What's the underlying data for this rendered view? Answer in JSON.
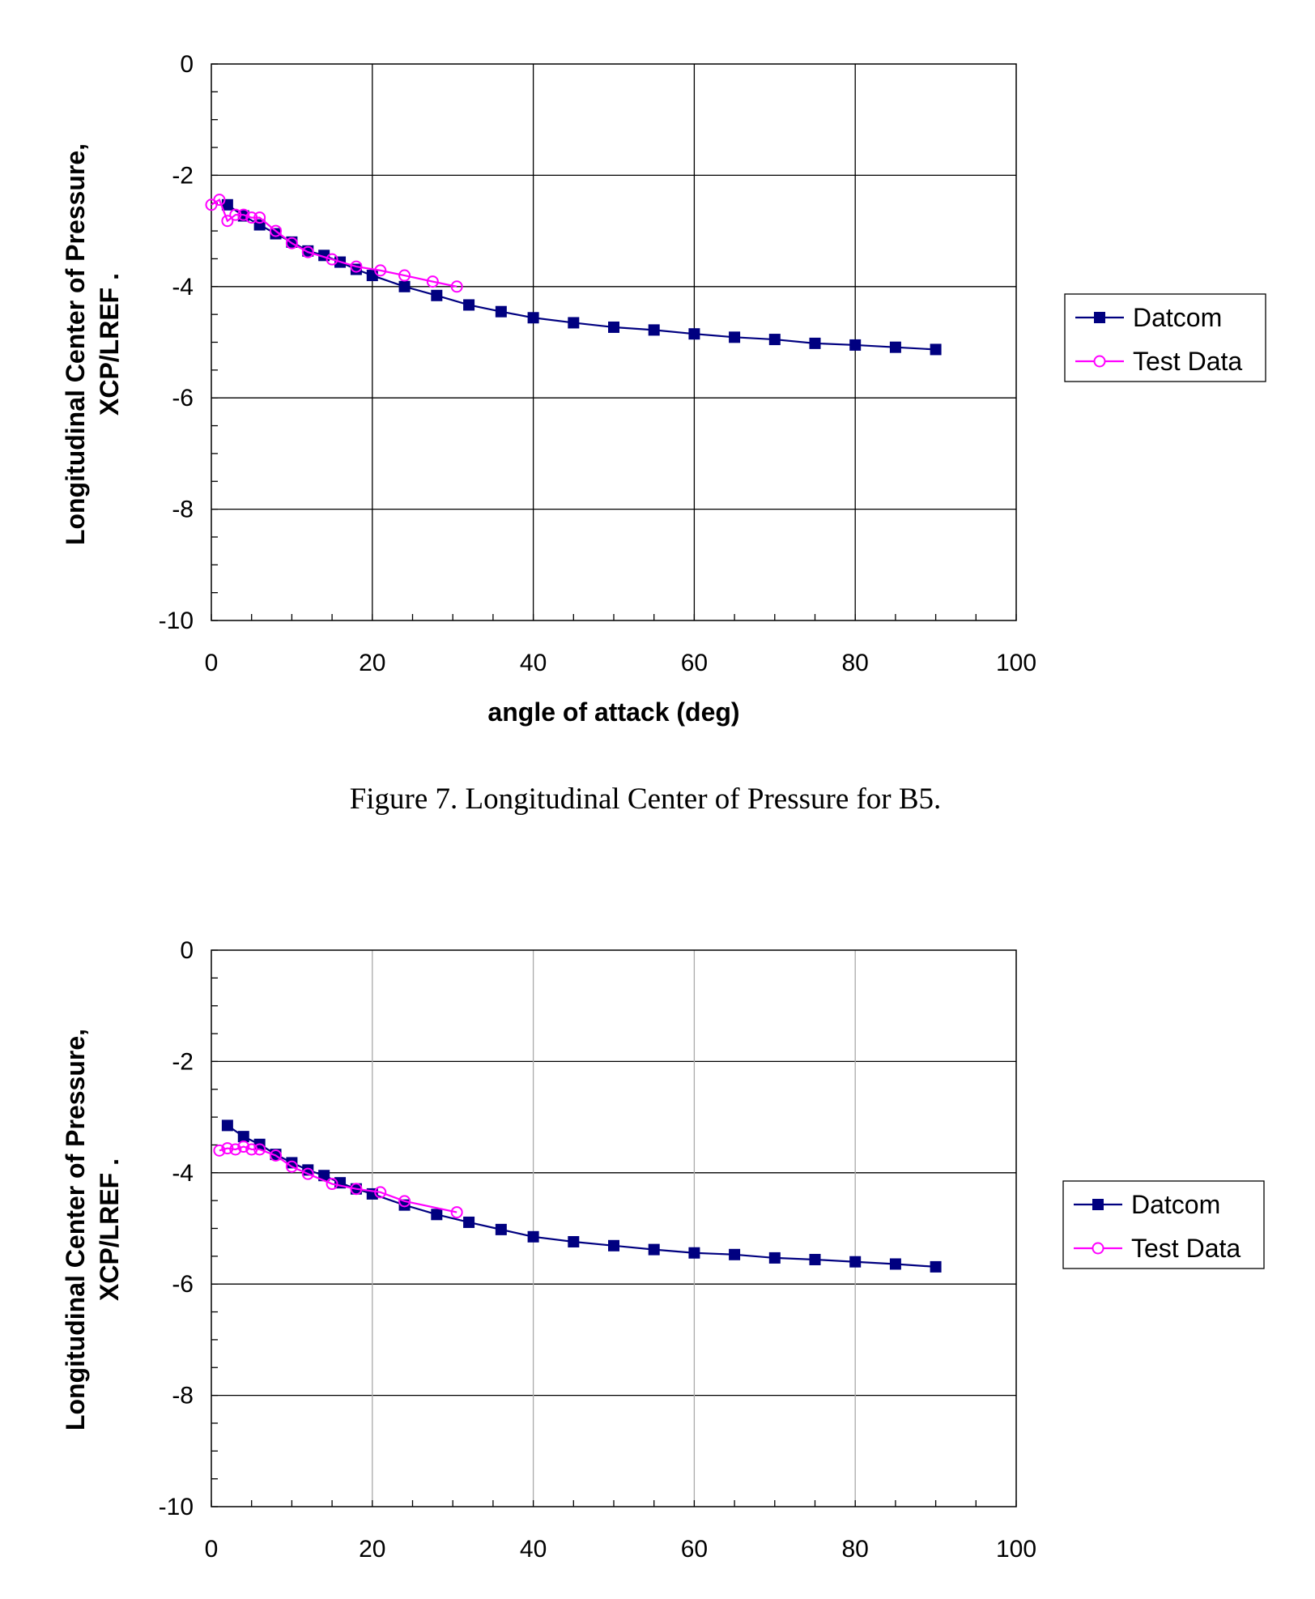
{
  "chart_data": [
    {
      "type": "line",
      "title": "",
      "xlabel": "angle of attack (deg)",
      "ylabel": [
        "Longitudinal Center of Pressure,",
        "XCP/LREF ."
      ],
      "xlim": [
        0,
        100
      ],
      "ylim": [
        -10,
        0
      ],
      "xticks": [
        "0",
        "20",
        "40",
        "60",
        "80",
        "100"
      ],
      "yticks": [
        "0",
        "-2",
        "-4",
        "-6",
        "-8",
        "-10"
      ],
      "grid": "major x and y",
      "legend_placement": "right",
      "caption": "Figure 7.  Longitudinal Center of Pressure for B5.",
      "series": [
        {
          "name": "Datcom",
          "color": "#000080",
          "marker": "filled-square",
          "x": [
            2,
            4,
            6,
            8,
            10,
            12,
            14,
            16,
            18,
            20,
            24,
            28,
            32,
            36,
            40,
            45,
            50,
            55,
            60,
            65,
            70,
            75,
            80,
            85,
            90
          ],
          "y": [
            -2.53,
            -2.73,
            -2.89,
            -3.05,
            -3.2,
            -3.36,
            -3.44,
            -3.56,
            -3.69,
            -3.8,
            -4.0,
            -4.16,
            -4.33,
            -4.45,
            -4.56,
            -4.65,
            -4.73,
            -4.78,
            -4.85,
            -4.91,
            -4.95,
            -5.02,
            -5.05,
            -5.09,
            -5.13
          ]
        },
        {
          "name": "Test Data",
          "color": "#ff00ff",
          "marker": "open-circle",
          "x": [
            0,
            1,
            2,
            3,
            4,
            5,
            6,
            8,
            10,
            12,
            15,
            18,
            21,
            24,
            27.5,
            30.5
          ],
          "y": [
            -2.53,
            -2.44,
            -2.82,
            -2.71,
            -2.71,
            -2.76,
            -2.76,
            -3.0,
            -3.22,
            -3.38,
            -3.51,
            -3.64,
            -3.71,
            -3.8,
            -3.91,
            -4.0
          ]
        }
      ]
    },
    {
      "type": "line",
      "title": "",
      "xlabel": "",
      "ylabel": [
        "Longitudinal Center of Pressure,",
        "XCP/LREF ."
      ],
      "xlim": [
        0,
        100
      ],
      "ylim": [
        -10,
        0
      ],
      "xticks": [
        "0",
        "20",
        "40",
        "60",
        "80",
        "100"
      ],
      "yticks": [
        "0",
        "-2",
        "-4",
        "-6",
        "-8",
        "-10"
      ],
      "grid": "major y (black), major x (gray)",
      "legend_placement": "right",
      "caption": "",
      "series": [
        {
          "name": "Datcom",
          "color": "#000080",
          "marker": "filled-square",
          "x": [
            2,
            4,
            6,
            8,
            10,
            12,
            14,
            16,
            18,
            20,
            24,
            28,
            32,
            36,
            40,
            45,
            50,
            55,
            60,
            65,
            70,
            75,
            80,
            85,
            90
          ],
          "y": [
            -3.15,
            -3.35,
            -3.49,
            -3.67,
            -3.82,
            -3.95,
            -4.05,
            -4.18,
            -4.29,
            -4.38,
            -4.58,
            -4.75,
            -4.89,
            -5.02,
            -5.15,
            -5.24,
            -5.31,
            -5.38,
            -5.44,
            -5.47,
            -5.53,
            -5.56,
            -5.6,
            -5.64,
            -5.69
          ]
        },
        {
          "name": "Test Data",
          "color": "#ff00ff",
          "marker": "open-circle",
          "x": [
            1,
            2,
            3,
            4,
            5,
            6,
            8,
            10,
            12,
            15,
            18,
            21,
            24,
            30.5
          ],
          "y": [
            -3.6,
            -3.56,
            -3.58,
            -3.53,
            -3.58,
            -3.58,
            -3.69,
            -3.89,
            -4.02,
            -4.2,
            -4.29,
            -4.35,
            -4.51,
            -4.71
          ]
        }
      ]
    }
  ]
}
